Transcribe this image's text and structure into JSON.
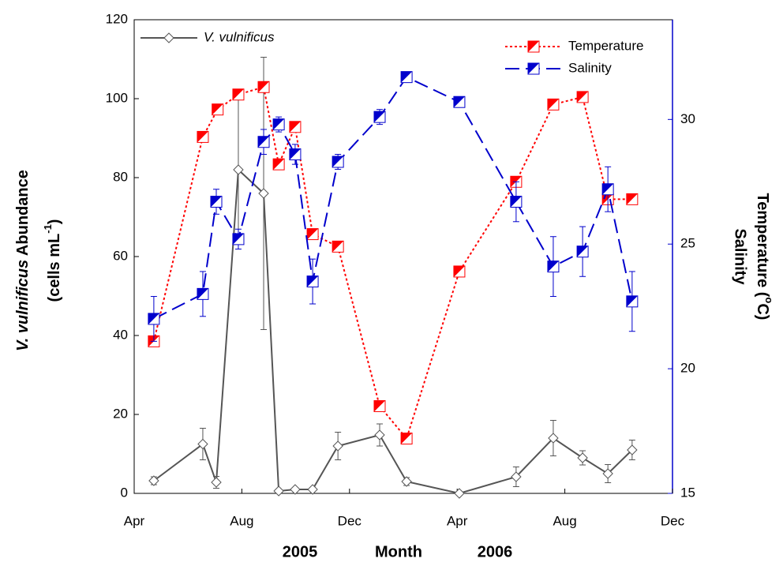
{
  "chart_data": {
    "type": "line",
    "xlabel": {
      "left": "2005",
      "center": "Month",
      "right": "2006"
    },
    "ylabel": {
      "italic": "V. vulnificus",
      "text": "Abundance",
      "line2": "(cells mL",
      "sup": "-1",
      "close": ")"
    },
    "y2label": {
      "line1": "Temperature (",
      "sup": "o",
      "close": "C)",
      "line2": "Salinity"
    },
    "xlim": [
      0,
      20
    ],
    "xticks": [
      {
        "value": 0,
        "label": "Apr"
      },
      {
        "value": 4,
        "label": "Aug"
      },
      {
        "value": 8,
        "label": "Dec"
      },
      {
        "value": 12,
        "label": "Apr"
      },
      {
        "value": 16,
        "label": "Aug"
      },
      {
        "value": 20,
        "label": "Dec"
      }
    ],
    "ylim": [
      0,
      120
    ],
    "yticks": [
      0,
      20,
      40,
      60,
      80,
      100,
      120
    ],
    "y2lim": [
      15,
      34
    ],
    "y2ticks": [
      15,
      20,
      25,
      30
    ],
    "series": [
      {
        "name": "V. vulnificus",
        "color": "#555555",
        "axis": "y",
        "marker": "diamond",
        "dash": "none",
        "x": [
          0.73,
          2.55,
          3.05,
          3.87,
          4.81,
          5.37,
          5.98,
          6.63,
          7.57,
          9.12,
          10.12,
          12.08,
          14.19,
          15.57,
          16.66,
          17.6,
          18.5
        ],
        "values": [
          3.2,
          12.5,
          2.8,
          82,
          76,
          0.6,
          1,
          1,
          12,
          14.8,
          3,
          0,
          4.2,
          14,
          9,
          5,
          11
        ],
        "errors": [
          1,
          4,
          1.5,
          18,
          34.5,
          0.3,
          0.3,
          0.3,
          3.5,
          2.8,
          1,
          0.3,
          2.5,
          4.5,
          1.8,
          2.3,
          2.5
        ]
      },
      {
        "name": "Temperature",
        "color": "#ff0000",
        "axis": "y2",
        "marker": "half-square",
        "dash": "3 3",
        "x": [
          0.73,
          2.55,
          3.1,
          3.87,
          4.81,
          5.37,
          5.98,
          6.63,
          7.57,
          9.12,
          10.12,
          12.08,
          14.19,
          15.57,
          16.66,
          17.6,
          18.5
        ],
        "values": [
          21.1,
          29.3,
          30.4,
          31.0,
          31.3,
          28.2,
          29.7,
          25.4,
          24.9,
          18.5,
          17.2,
          23.9,
          27.5,
          30.6,
          30.9,
          26.8,
          26.8
        ]
      },
      {
        "name": "Salinity",
        "color": "#0000cc",
        "axis": "y2",
        "marker": "half-square",
        "dash": "18 8",
        "x": [
          0.73,
          2.55,
          3.05,
          3.87,
          4.81,
          5.37,
          5.98,
          6.63,
          7.57,
          9.12,
          10.12,
          12.08,
          14.19,
          15.57,
          16.66,
          17.6,
          18.5
        ],
        "values": [
          22.0,
          23.0,
          26.7,
          25.2,
          29.1,
          29.8,
          28.6,
          23.5,
          28.3,
          30.1,
          31.7,
          30.7,
          26.7,
          24.1,
          24.7,
          27.2,
          22.7
        ],
        "errors": [
          0.9,
          0.9,
          0.5,
          0.4,
          0.5,
          0.3,
          0.4,
          0.9,
          0.3,
          0.3,
          0.2,
          0,
          0.8,
          1.2,
          1.0,
          0.9,
          1.2
        ]
      }
    ]
  }
}
